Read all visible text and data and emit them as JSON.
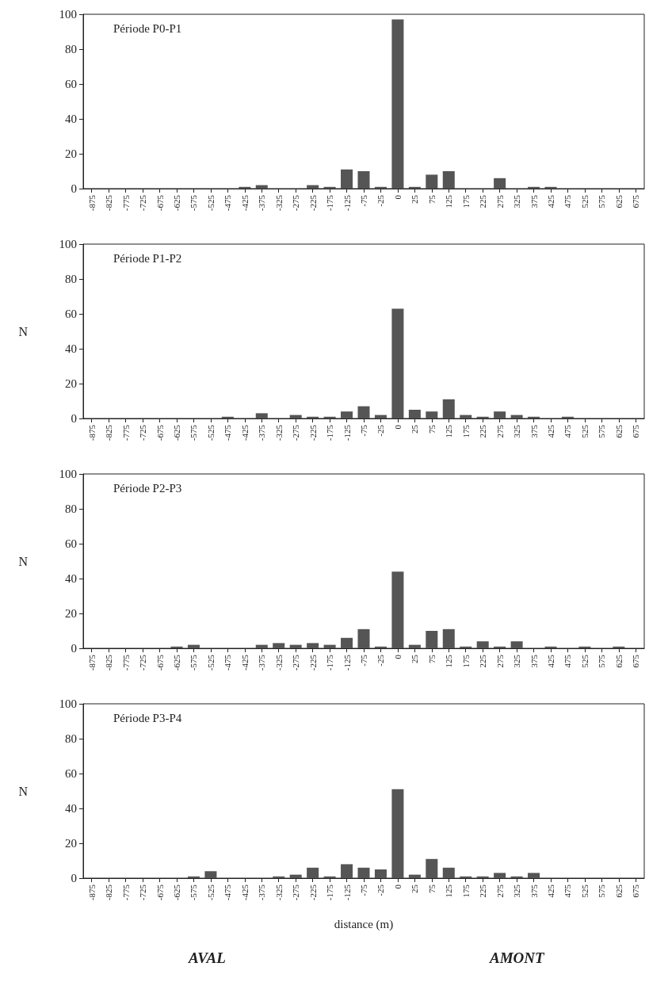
{
  "chart_data": [
    {
      "type": "bar",
      "title": "Période P0-P1",
      "categories": [
        "-875",
        "-825",
        "-775",
        "-725",
        "-675",
        "-625",
        "-575",
        "-525",
        "-475",
        "-425",
        "-375",
        "-325",
        "-275",
        "-225",
        "-175",
        "-125",
        "-75",
        "-25",
        "0",
        "25",
        "75",
        "125",
        "175",
        "225",
        "275",
        "325",
        "375",
        "425",
        "475",
        "525",
        "575",
        "625",
        "675"
      ],
      "values": [
        0,
        0,
        0,
        0,
        0,
        0,
        0,
        0,
        0,
        1,
        2,
        0,
        0,
        2,
        1,
        11,
        10,
        1,
        97,
        1,
        8,
        10,
        0,
        0,
        6,
        0,
        1,
        1,
        0,
        0,
        0,
        0,
        0
      ],
      "color": "#555555",
      "ylim": [
        0,
        100
      ],
      "yticks": [
        0,
        20,
        40,
        60,
        80,
        100
      ],
      "grid": false
    },
    {
      "type": "bar",
      "title": "Période P1-P2",
      "ylabel": "N",
      "categories": [
        "-875",
        "-825",
        "-775",
        "-725",
        "-675",
        "-625",
        "-575",
        "-525",
        "-475",
        "-425",
        "-375",
        "-325",
        "-275",
        "-225",
        "-175",
        "-125",
        "-75",
        "-25",
        "0",
        "25",
        "75",
        "125",
        "175",
        "225",
        "275",
        "325",
        "375",
        "425",
        "475",
        "525",
        "575",
        "625",
        "675"
      ],
      "values": [
        0,
        0,
        0,
        0,
        0,
        0,
        0,
        0,
        1,
        0,
        3,
        0,
        2,
        1,
        1,
        4,
        7,
        2,
        63,
        5,
        4,
        11,
        2,
        1,
        4,
        2,
        1,
        0,
        1,
        0,
        0,
        0,
        0
      ],
      "color": "#555555",
      "ylim": [
        0,
        100
      ],
      "yticks": [
        0,
        20,
        40,
        60,
        80,
        100
      ],
      "grid": false
    },
    {
      "type": "bar",
      "title": "Période P2-P3",
      "ylabel": "N",
      "categories": [
        "-875",
        "-825",
        "-775",
        "-725",
        "-675",
        "-625",
        "-575",
        "-525",
        "-475",
        "-425",
        "-375",
        "-325",
        "-275",
        "-225",
        "-175",
        "-125",
        "-75",
        "-25",
        "0",
        "25",
        "75",
        "125",
        "175",
        "225",
        "275",
        "325",
        "375",
        "425",
        "475",
        "525",
        "575",
        "625",
        "675"
      ],
      "values": [
        0,
        0,
        0,
        0,
        0,
        1,
        2,
        0,
        0,
        0,
        2,
        3,
        2,
        3,
        2,
        6,
        11,
        1,
        44,
        2,
        10,
        11,
        1,
        4,
        1,
        4,
        0,
        1,
        0,
        1,
        0,
        1,
        0
      ],
      "color": "#555555",
      "ylim": [
        0,
        100
      ],
      "yticks": [
        0,
        20,
        40,
        60,
        80,
        100
      ],
      "grid": false
    },
    {
      "type": "bar",
      "title": "Période P3-P4",
      "ylabel": "N",
      "xlabel": "distance (m)",
      "annotations": [
        "AVAL",
        "AMONT"
      ],
      "categories": [
        "-875",
        "-825",
        "-775",
        "-725",
        "-675",
        "-625",
        "-575",
        "-525",
        "-475",
        "-425",
        "-375",
        "-325",
        "-275",
        "-225",
        "-175",
        "-125",
        "-75",
        "-25",
        "0",
        "25",
        "75",
        "125",
        "175",
        "225",
        "275",
        "325",
        "375",
        "425",
        "475",
        "525",
        "575",
        "625",
        "675"
      ],
      "values": [
        0,
        0,
        0,
        0,
        0,
        0,
        1,
        4,
        0,
        0,
        0,
        1,
        2,
        6,
        1,
        8,
        6,
        5,
        51,
        2,
        11,
        6,
        1,
        1,
        3,
        1,
        3,
        0,
        0,
        0,
        0,
        0,
        0
      ],
      "color": "#555555",
      "ylim": [
        0,
        100
      ],
      "yticks": [
        0,
        20,
        40,
        60,
        80,
        100
      ],
      "grid": false
    }
  ]
}
